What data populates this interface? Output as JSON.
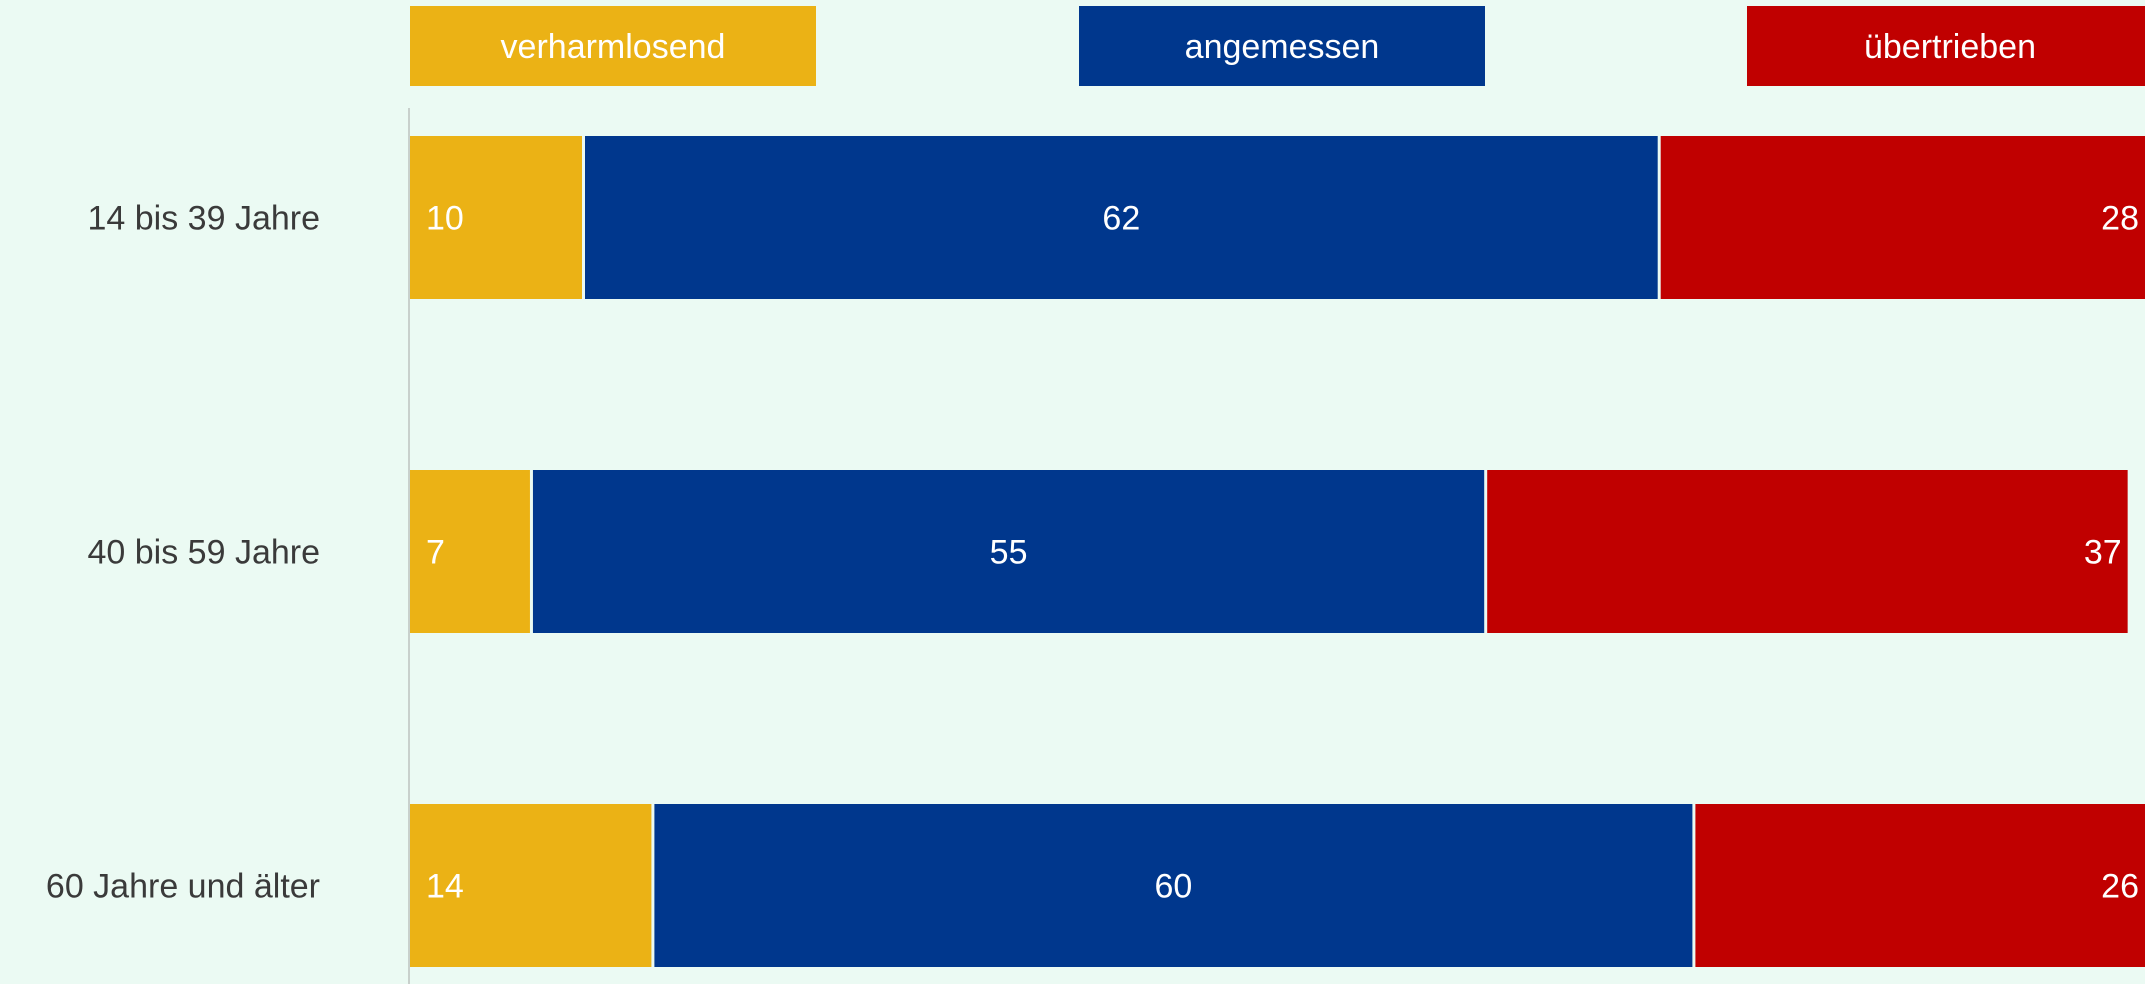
{
  "colors": {
    "background": "#ebfaf3",
    "verharmlosend": "#ebb215",
    "angemessen": "#00378d",
    "uebertrieben": "#c00000",
    "label_text": "#3a3a3a",
    "axis_line": "#c8d0cc"
  },
  "chart_data": {
    "type": "bar",
    "orientation": "horizontal",
    "stacked": true,
    "categories": [
      "14 bis 39 Jahre",
      "40 bis 59 Jahre",
      "60 Jahre und älter"
    ],
    "series": [
      {
        "name": "verharmlosend",
        "values": [
          10,
          7,
          14
        ],
        "color": "#ebb215"
      },
      {
        "name": "angemessen",
        "values": [
          62,
          55,
          60
        ],
        "color": "#00378d"
      },
      {
        "name": "übertrieben",
        "values": [
          28,
          37,
          26
        ],
        "color": "#c00000"
      }
    ],
    "xlim": [
      0,
      100
    ],
    "grid": false,
    "legend": "top",
    "data_labels": true
  }
}
